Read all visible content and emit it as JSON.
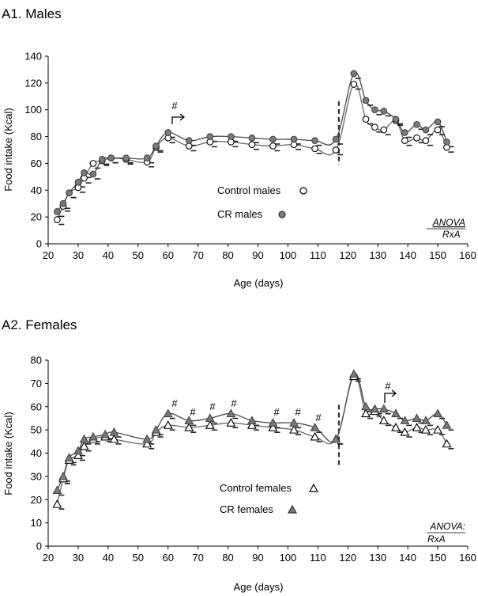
{
  "chart_data": [
    {
      "type": "line",
      "title": "A1. Males",
      "xlabel": "Age (days)",
      "ylabel": "Food intake (Kcal)",
      "xlim": [
        20,
        160
      ],
      "ylim": [
        0,
        140
      ],
      "xticks": [
        20,
        30,
        40,
        50,
        60,
        70,
        80,
        90,
        100,
        110,
        120,
        130,
        140,
        150,
        160
      ],
      "yticks": [
        0,
        20,
        40,
        60,
        80,
        100,
        120,
        140
      ],
      "grid": false,
      "legend_position": "center",
      "series": [
        {
          "name": "Control males",
          "marker": "circle-open",
          "x": [
            23,
            25,
            27,
            30,
            32,
            35,
            38,
            41,
            46,
            53,
            56,
            60,
            67,
            74,
            81,
            88,
            95,
            102,
            109,
            116,
            122,
            126,
            129,
            132,
            136,
            139,
            143,
            146,
            150,
            153
          ],
          "y": [
            18,
            28,
            38,
            42,
            49,
            60,
            62,
            64,
            63,
            61,
            72,
            79,
            73,
            76,
            76,
            74,
            73,
            74,
            71,
            70,
            119,
            93,
            87,
            85,
            92,
            77,
            79,
            77,
            85,
            72
          ]
        },
        {
          "name": "CR males",
          "marker": "circle-filled",
          "x": [
            23,
            25,
            27,
            30,
            32,
            35,
            38,
            41,
            46,
            53,
            56,
            60,
            67,
            74,
            81,
            88,
            95,
            102,
            109,
            116,
            122,
            126,
            129,
            132,
            136,
            139,
            143,
            146,
            150,
            153
          ],
          "y": [
            24,
            30,
            38,
            46,
            53,
            52,
            63,
            64,
            64,
            64,
            73,
            83,
            77,
            80,
            80,
            79,
            78,
            78,
            77,
            78,
            127,
            107,
            100,
            99,
            93,
            83,
            89,
            85,
            91,
            76
          ]
        }
      ],
      "annotations": [
        "#",
        "ANOVA",
        "RxA"
      ],
      "legend": [
        "Control males",
        "CR males"
      ]
    },
    {
      "type": "line",
      "title": "A2. Females",
      "xlabel": "Age (days)",
      "ylabel": "Food intake (Kcal)",
      "xlim": [
        20,
        160
      ],
      "ylim": [
        0,
        80
      ],
      "xticks": [
        20,
        30,
        40,
        50,
        60,
        70,
        80,
        90,
        100,
        110,
        120,
        130,
        140,
        150,
        160
      ],
      "yticks": [
        0,
        10,
        20,
        30,
        40,
        50,
        60,
        70,
        80
      ],
      "grid": false,
      "legend_position": "center",
      "series": [
        {
          "name": "Control females",
          "marker": "triangle-open",
          "x": [
            23,
            25,
            27,
            30,
            32,
            35,
            39,
            42,
            53,
            56,
            60,
            67,
            74,
            81,
            88,
            95,
            102,
            109,
            116,
            122,
            126,
            129,
            132,
            136,
            139,
            143,
            146,
            150,
            153
          ],
          "y": [
            18,
            29,
            37,
            39,
            43,
            46,
            47,
            46,
            44,
            49,
            52,
            51,
            52,
            53,
            52,
            51,
            50,
            47,
            46,
            73,
            57,
            58,
            54,
            51,
            49,
            51,
            50,
            50,
            44
          ]
        },
        {
          "name": "CR females",
          "marker": "triangle-filled",
          "x": [
            23,
            25,
            27,
            30,
            32,
            35,
            39,
            42,
            53,
            56,
            60,
            67,
            74,
            81,
            88,
            95,
            102,
            109,
            116,
            122,
            126,
            129,
            132,
            136,
            139,
            143,
            146,
            150,
            153
          ],
          "y": [
            24,
            30,
            38,
            41,
            46,
            47,
            48,
            49,
            46,
            50,
            57,
            54,
            55,
            57,
            54,
            53,
            53,
            51,
            46,
            74,
            60,
            59,
            59,
            57,
            54,
            55,
            54,
            57,
            52
          ]
        }
      ],
      "annotations": [
        "#",
        "#",
        "#",
        "#",
        "#",
        "#",
        "#",
        "#",
        "ANOVA:",
        "RxA"
      ],
      "legend": [
        "Control females",
        "CR females"
      ]
    }
  ]
}
